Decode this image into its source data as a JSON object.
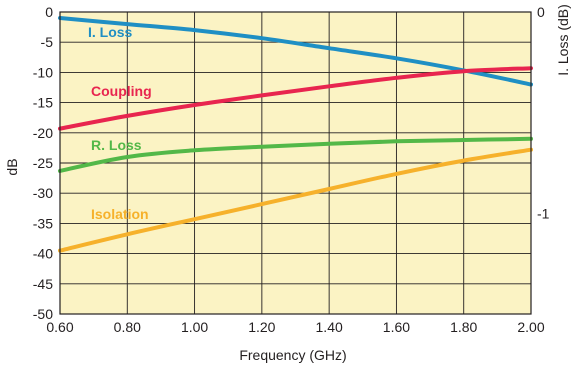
{
  "chart_data": {
    "type": "line",
    "xlabel": "Frequency (GHz)",
    "ylabel": "dB",
    "y2label": "I. Loss (dB)",
    "xlim": [
      0.6,
      2.0
    ],
    "ylim": [
      -50,
      0
    ],
    "y2lim": [
      -1.5,
      0
    ],
    "x_ticks": [
      "0.60",
      "0.80",
      "1.00",
      "1.20",
      "1.40",
      "1.60",
      "1.80",
      "2.00"
    ],
    "y_ticks": [
      "0",
      "-5",
      "-10",
      "-15",
      "-20",
      "-25",
      "-30",
      "-35",
      "-40",
      "-45",
      "-50"
    ],
    "y2_ticks": [
      "0",
      "-1"
    ],
    "grid": true,
    "background": "#fbf3c4",
    "series": [
      {
        "name": "I. Loss",
        "color": "#1f8fc4",
        "axis": "right",
        "x": [
          0.6,
          0.8,
          1.0,
          1.2,
          1.4,
          1.6,
          1.8,
          2.0
        ],
        "values": [
          -0.03,
          -0.06,
          -0.09,
          -0.13,
          -0.18,
          -0.23,
          -0.29,
          -0.36
        ]
      },
      {
        "name": "Coupling",
        "color": "#e8254f",
        "axis": "left",
        "x": [
          0.6,
          0.8,
          1.0,
          1.2,
          1.4,
          1.6,
          1.8,
          2.0
        ],
        "values": [
          -19.3,
          -17.2,
          -15.4,
          -13.8,
          -12.3,
          -10.9,
          -9.8,
          -9.3
        ]
      },
      {
        "name": "R. Loss",
        "color": "#53b848",
        "axis": "left",
        "x": [
          0.6,
          0.8,
          1.0,
          1.2,
          1.4,
          1.6,
          1.8,
          2.0
        ],
        "values": [
          -26.3,
          -24.0,
          -22.9,
          -22.3,
          -21.8,
          -21.4,
          -21.2,
          -21.0
        ]
      },
      {
        "name": "Isolation",
        "color": "#f6b12b",
        "axis": "left",
        "x": [
          0.6,
          0.8,
          1.0,
          1.2,
          1.4,
          1.6,
          1.8,
          2.0
        ],
        "values": [
          -39.5,
          -36.8,
          -34.3,
          -31.8,
          -29.3,
          -26.8,
          -24.6,
          -22.8
        ]
      }
    ]
  }
}
